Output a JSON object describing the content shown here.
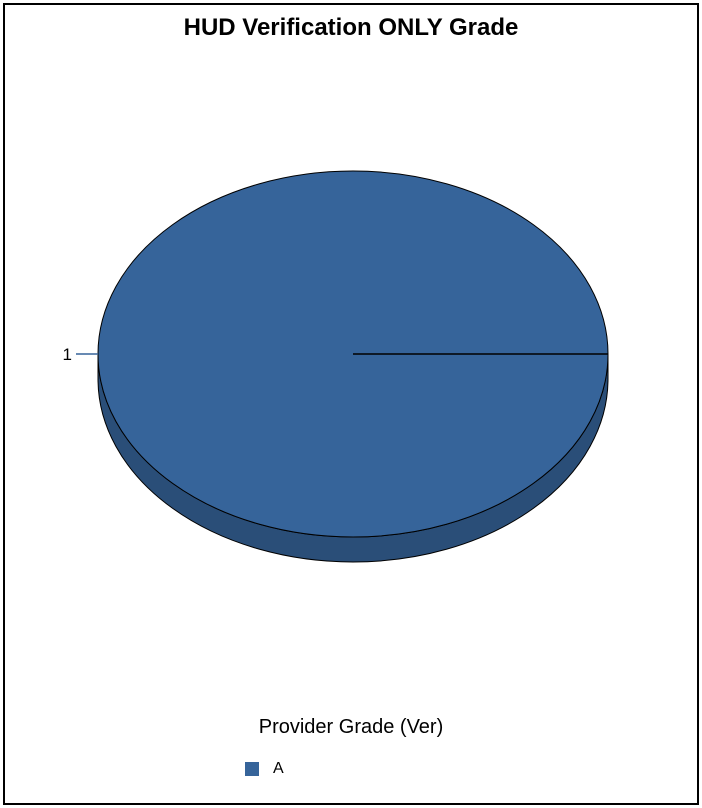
{
  "chart_data": {
    "type": "pie",
    "title": "HUD Verification ONLY Grade",
    "categories": [
      "A"
    ],
    "values": [
      1
    ],
    "data_labels": [
      "1"
    ],
    "colors": {
      "A": "#36649A"
    },
    "legend": {
      "title": "Provider Grade (Ver)",
      "entries": [
        "A"
      ],
      "placement": "bottom"
    },
    "style": "3d-tilted"
  }
}
